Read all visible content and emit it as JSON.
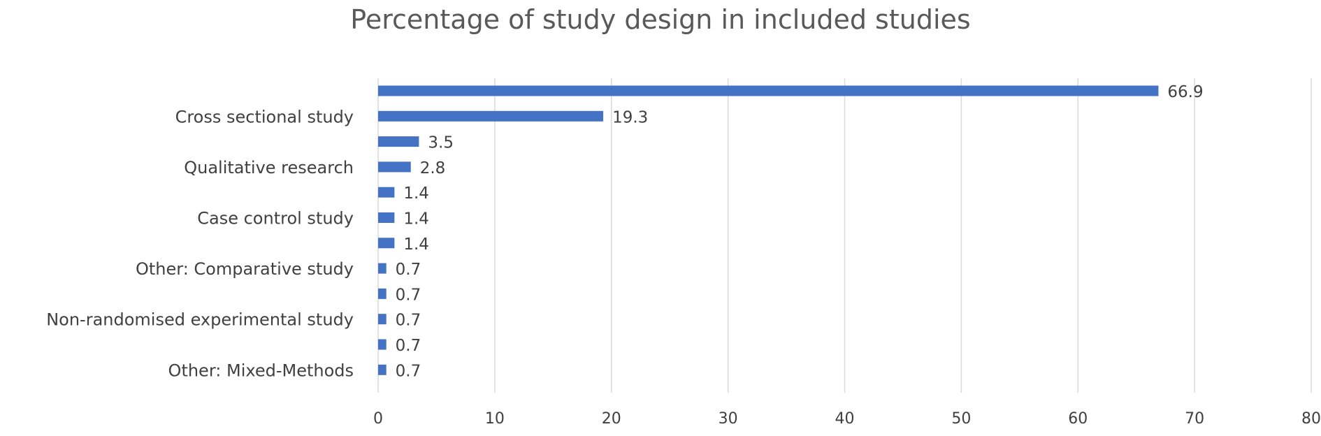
{
  "chart_data": {
    "type": "bar",
    "orientation": "horizontal",
    "title": "Percentage of study design in included studies",
    "xlabel": "",
    "ylabel": "",
    "categories": [
      "",
      "Cross sectional study",
      "",
      "Qualitative research",
      "",
      "Case control study",
      "",
      "Other: Comparative study",
      "",
      "Non-randomised experimental study",
      "",
      "Other: Mixed-Methods"
    ],
    "values": [
      66.9,
      19.3,
      3.5,
      2.8,
      1.4,
      1.4,
      1.4,
      0.7,
      0.7,
      0.7,
      0.7,
      0.7
    ],
    "data_labels": [
      "66.9",
      "19.3",
      "3.5",
      "2.8",
      "1.4",
      "1.4",
      "1.4",
      "0.7",
      "0.7",
      "0.7",
      "0.7",
      "0.7"
    ],
    "xlim": [
      0,
      80
    ],
    "xticks": [
      "0",
      "10",
      "20",
      "30",
      "40",
      "50",
      "60",
      "70",
      "80"
    ],
    "grid": "vertical",
    "legend": "none",
    "colors": {
      "bar": "#4472C4",
      "grid": "#d9d9d9",
      "text": "#404040",
      "title": "#595959"
    }
  }
}
